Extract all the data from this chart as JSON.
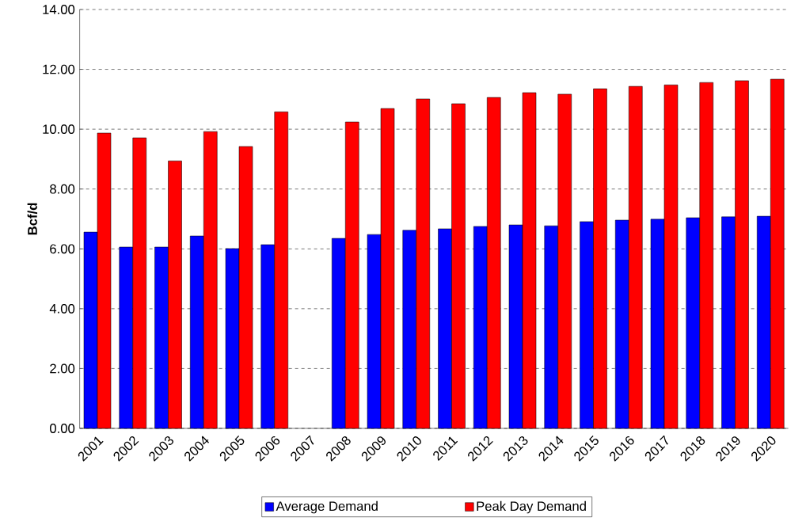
{
  "chart_data": {
    "type": "bar",
    "ylabel": "Bcf/d",
    "categories": [
      "2001",
      "2002",
      "2003",
      "2004",
      "2005",
      "2006",
      "2007",
      "2008",
      "2009",
      "2010",
      "2011",
      "2012",
      "2013",
      "2014",
      "2015",
      "2016",
      "2017",
      "2018",
      "2019",
      "2020"
    ],
    "series": [
      {
        "name": "Average Demand",
        "color": "#0000ff",
        "values": [
          6.56,
          6.06,
          6.06,
          6.43,
          6.01,
          6.14,
          null,
          6.35,
          6.48,
          6.62,
          6.67,
          6.75,
          6.8,
          6.77,
          6.91,
          6.96,
          6.99,
          7.04,
          7.07,
          7.09
        ]
      },
      {
        "name": "Peak Day Demand",
        "color": "#ff0000",
        "values": [
          9.87,
          9.71,
          8.94,
          9.92,
          9.42,
          10.58,
          null,
          10.24,
          10.69,
          11.01,
          10.85,
          11.06,
          11.22,
          11.17,
          11.35,
          11.43,
          11.48,
          11.56,
          11.62,
          11.67
        ]
      }
    ],
    "ylim": [
      0,
      14
    ],
    "yticks": [
      {
        "value": 0,
        "label": "0.00"
      },
      {
        "value": 2,
        "label": "2.00"
      },
      {
        "value": 4,
        "label": "4.00"
      },
      {
        "value": 6,
        "label": "6.00"
      },
      {
        "value": 8,
        "label": "8.00"
      },
      {
        "value": 10,
        "label": "10.00"
      },
      {
        "value": 12,
        "label": "12.00"
      },
      {
        "value": 14,
        "label": "14.00"
      }
    ],
    "grid": "y",
    "legend": "bottom"
  }
}
